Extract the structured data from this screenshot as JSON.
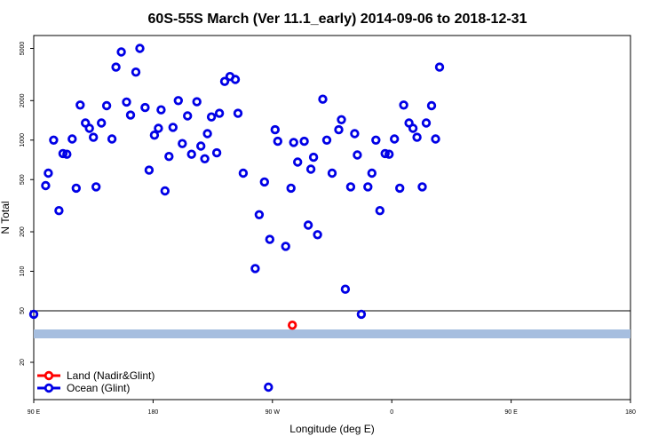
{
  "chart_data": {
    "type": "scatter",
    "title": "60S-55S March (Ver 11.1_early)   2014-09-06 to 2018-12-31",
    "xlabel": "Longitude (deg E)",
    "ylabel": "N Total",
    "x_tick_labels": [
      "90 E",
      "180",
      "90 W",
      "0",
      "90 E",
      "180"
    ],
    "y_tick_labels_upper": [
      "5000",
      "2000",
      "1000",
      "500",
      "200",
      "100",
      "50"
    ],
    "y_tick_labels_lower": [
      "20"
    ],
    "x_scale": "longitude, 90 E to 180 (wrapping through 180 / 90 W / 0)",
    "y_scale": "log",
    "grid": false,
    "legend_position": "bottom-left",
    "colors": {
      "land": "#ff0000",
      "ocean": "#0000e6",
      "band": "#a6bedf"
    },
    "series": [
      {
        "name": "Land (Nadir&Glint)",
        "color": "#ff0000",
        "points": [
          {
            "lon": -75,
            "n": 32
          }
        ]
      },
      {
        "name": "Ocean (Glint)",
        "color": "#0000e6",
        "points": [
          {
            "lon": 90,
            "n": 47
          },
          {
            "lon": 99,
            "n": 450
          },
          {
            "lon": 101,
            "n": 560
          },
          {
            "lon": 105,
            "n": 1000
          },
          {
            "lon": 109,
            "n": 290
          },
          {
            "lon": 112,
            "n": 790
          },
          {
            "lon": 115,
            "n": 780
          },
          {
            "lon": 119,
            "n": 1020
          },
          {
            "lon": 122,
            "n": 430
          },
          {
            "lon": 125,
            "n": 1850
          },
          {
            "lon": 129,
            "n": 1350
          },
          {
            "lon": 132,
            "n": 1230
          },
          {
            "lon": 135,
            "n": 1050
          },
          {
            "lon": 137,
            "n": 440
          },
          {
            "lon": 141,
            "n": 1350
          },
          {
            "lon": 145,
            "n": 1830
          },
          {
            "lon": 149,
            "n": 1020
          },
          {
            "lon": 152,
            "n": 3600
          },
          {
            "lon": 156,
            "n": 4700
          },
          {
            "lon": 160,
            "n": 1950
          },
          {
            "lon": 163,
            "n": 1550
          },
          {
            "lon": 167,
            "n": 3300
          },
          {
            "lon": 170,
            "n": 5000
          },
          {
            "lon": 174,
            "n": 1770
          },
          {
            "lon": 177,
            "n": 590
          },
          {
            "lon": -179,
            "n": 1090
          },
          {
            "lon": -176,
            "n": 1230
          },
          {
            "lon": -174,
            "n": 1700
          },
          {
            "lon": -171,
            "n": 410
          },
          {
            "lon": -168,
            "n": 750
          },
          {
            "lon": -165,
            "n": 1250
          },
          {
            "lon": -161,
            "n": 2000
          },
          {
            "lon": -158,
            "n": 940
          },
          {
            "lon": -154,
            "n": 1530
          },
          {
            "lon": -151,
            "n": 780
          },
          {
            "lon": -147,
            "n": 1960
          },
          {
            "lon": -144,
            "n": 900
          },
          {
            "lon": -141,
            "n": 720
          },
          {
            "lon": -139,
            "n": 1120
          },
          {
            "lon": -136,
            "n": 1500
          },
          {
            "lon": -132,
            "n": 800
          },
          {
            "lon": -130,
            "n": 1600
          },
          {
            "lon": -126,
            "n": 2800
          },
          {
            "lon": -122,
            "n": 3050
          },
          {
            "lon": -118,
            "n": 2900
          },
          {
            "lon": -116,
            "n": 1600
          },
          {
            "lon": -112,
            "n": 560
          },
          {
            "lon": -103,
            "n": 105
          },
          {
            "lon": -100,
            "n": 270
          },
          {
            "lon": -96,
            "n": 480
          },
          {
            "lon": -92,
            "n": 175
          },
          {
            "lon": -88,
            "n": 1200
          },
          {
            "lon": -86,
            "n": 980
          },
          {
            "lon": -80,
            "n": 155
          },
          {
            "lon": -76,
            "n": 430
          },
          {
            "lon": -74,
            "n": 960
          },
          {
            "lon": -71,
            "n": 680
          },
          {
            "lon": -66,
            "n": 980
          },
          {
            "lon": -63,
            "n": 225
          },
          {
            "lon": -61,
            "n": 600
          },
          {
            "lon": -59,
            "n": 740
          },
          {
            "lon": -56,
            "n": 190
          },
          {
            "lon": -52,
            "n": 2050
          },
          {
            "lon": -49,
            "n": 1000
          },
          {
            "lon": -45,
            "n": 560
          },
          {
            "lon": -40,
            "n": 1200
          },
          {
            "lon": -38,
            "n": 1430
          },
          {
            "lon": -35,
            "n": 73
          },
          {
            "lon": -31,
            "n": 440
          },
          {
            "lon": -28,
            "n": 1120
          },
          {
            "lon": -26,
            "n": 770
          },
          {
            "lon": -23,
            "n": 47
          },
          {
            "lon": -18,
            "n": 440
          },
          {
            "lon": -15,
            "n": 560
          },
          {
            "lon": -12,
            "n": 1000
          },
          {
            "lon": -9,
            "n": 290
          },
          {
            "lon": -5,
            "n": 790
          },
          {
            "lon": -2,
            "n": 780
          },
          {
            "lon": 2,
            "n": 1020
          },
          {
            "lon": 6,
            "n": 430
          },
          {
            "lon": 9,
            "n": 1850
          },
          {
            "lon": 13,
            "n": 1350
          },
          {
            "lon": 16,
            "n": 1230
          },
          {
            "lon": 19,
            "n": 1050
          },
          {
            "lon": 23,
            "n": 440
          },
          {
            "lon": 26,
            "n": 1350
          },
          {
            "lon": 30,
            "n": 1830
          },
          {
            "lon": 33,
            "n": 1020
          },
          {
            "lon": 36,
            "n": 3600
          },
          {
            "lon": -93,
            "n": 14.6
          }
        ]
      }
    ]
  }
}
